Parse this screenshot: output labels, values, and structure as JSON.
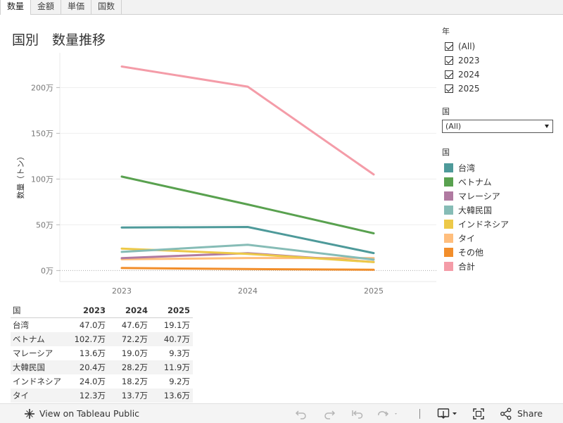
{
  "tabs": [
    {
      "label": "数量",
      "active": true
    },
    {
      "label": "金額",
      "active": false
    },
    {
      "label": "単価",
      "active": false
    },
    {
      "label": "国数",
      "active": false
    }
  ],
  "page_title": "国別　数量推移",
  "chart_data": {
    "type": "line",
    "ylabel": "数量（トン）",
    "x": [
      "2023",
      "2024",
      "2025"
    ],
    "y_ticks": [
      "0万",
      "50万",
      "100万",
      "150万",
      "200万"
    ],
    "y_tick_values": [
      0,
      500000,
      1000000,
      1500000,
      2000000
    ],
    "ylim": [
      -120000,
      2380000
    ],
    "grid": true,
    "series": [
      {
        "name": "合計",
        "color": "#f49ca8",
        "values": [
          2230000,
          2010000,
          1050000
        ]
      },
      {
        "name": "ベトナム",
        "color": "#59a14f",
        "values": [
          1027000,
          722000,
          407000
        ]
      },
      {
        "name": "台湾",
        "color": "#4e9a9a",
        "values": [
          470000,
          476000,
          191000
        ]
      },
      {
        "name": "大韓民国",
        "color": "#86bcb6",
        "values": [
          204000,
          282000,
          119000
        ]
      },
      {
        "name": "インドネシア",
        "color": "#edc948",
        "values": [
          240000,
          182000,
          92000
        ]
      },
      {
        "name": "マレーシア",
        "color": "#b07aa1",
        "values": [
          136000,
          190000,
          93000
        ]
      },
      {
        "name": "タイ",
        "color": "#ffbe7d",
        "values": [
          123000,
          137000,
          136000
        ]
      },
      {
        "name": "その他",
        "color": "#f28e2b",
        "values": [
          28000,
          16000,
          9000
        ]
      }
    ]
  },
  "filters": {
    "year": {
      "title": "年",
      "options": [
        {
          "label": "(All)",
          "checked": true
        },
        {
          "label": "2023",
          "checked": true
        },
        {
          "label": "2024",
          "checked": true
        },
        {
          "label": "2025",
          "checked": true
        }
      ]
    },
    "country": {
      "title": "国",
      "selected": "(All)"
    }
  },
  "legend": {
    "title": "国",
    "items": [
      {
        "label": "台湾",
        "color": "#4e9a9a"
      },
      {
        "label": "ベトナム",
        "color": "#59a14f"
      },
      {
        "label": "マレーシア",
        "color": "#b07aa1"
      },
      {
        "label": "大韓民国",
        "color": "#86bcb6"
      },
      {
        "label": "インドネシア",
        "color": "#edc948"
      },
      {
        "label": "タイ",
        "color": "#ffbe7d"
      },
      {
        "label": "その他",
        "color": "#f28e2b"
      },
      {
        "label": "合計",
        "color": "#f49ca8"
      }
    ]
  },
  "table": {
    "headers": [
      "国",
      "2023",
      "2024",
      "2025"
    ],
    "rows": [
      [
        "台湾",
        "47.0万",
        "47.6万",
        "19.1万"
      ],
      [
        "ベトナム",
        "102.7万",
        "72.2万",
        "40.7万"
      ],
      [
        "マレーシア",
        "13.6万",
        "19.0万",
        "9.3万"
      ],
      [
        "大韓民国",
        "20.4万",
        "28.2万",
        "11.9万"
      ],
      [
        "インドネシア",
        "24.0万",
        "18.2万",
        "9.2万"
      ],
      [
        "タイ",
        "12.3万",
        "13.7万",
        "13.6万"
      ]
    ]
  },
  "toolbar": {
    "view_label": "View on Tableau Public",
    "share_label": "Share"
  }
}
